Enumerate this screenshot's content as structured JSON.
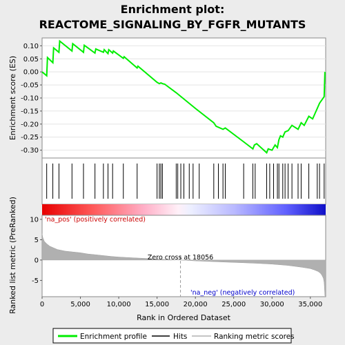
{
  "chart_data": [
    {
      "type": "line",
      "title_line1": "Enrichment plot:",
      "title_line2": "REACTOME_SIGNALING_BY_FGFR_MUTANTS",
      "ylabel": "Enrichment score (ES)",
      "xlim": [
        0,
        37000
      ],
      "ylim": [
        -0.33,
        0.13
      ],
      "yticks": [
        0.1,
        0.05,
        0.0,
        -0.05,
        -0.1,
        -0.15,
        -0.2,
        -0.25,
        -0.3
      ],
      "ytick_labels": [
        "0.10",
        "0.05",
        "0.00",
        "-0.05",
        "-0.10",
        "-0.15",
        "-0.20",
        "-0.25",
        "-0.30"
      ],
      "grid": true,
      "series": [
        {
          "color": "#00ee00",
          "x": [
            0,
            600,
            700,
            1400,
            1500,
            2200,
            2300,
            3900,
            4000,
            5400,
            5500,
            6900,
            7000,
            8000,
            8100,
            8600,
            8700,
            9200,
            9300,
            10600,
            10700,
            12400,
            12500,
            15000,
            15300,
            15500,
            15700,
            16000,
            17500,
            20000,
            22400,
            22700,
            23600,
            23900,
            26300,
            27500,
            27700,
            28000,
            29300,
            29500,
            30000,
            30400,
            30700,
            30900,
            31100,
            31400,
            31700,
            32100,
            32600,
            33400,
            33800,
            34200,
            34800,
            35300,
            35900,
            36200,
            36800,
            36900
          ],
          "y": [
            0.0,
            -0.015,
            0.055,
            0.035,
            0.092,
            0.075,
            0.118,
            0.08,
            0.108,
            0.075,
            0.102,
            0.072,
            0.088,
            0.075,
            0.085,
            0.07,
            0.085,
            0.072,
            0.08,
            0.052,
            0.058,
            0.015,
            0.022,
            -0.04,
            -0.045,
            -0.042,
            -0.045,
            -0.047,
            -0.08,
            -0.14,
            -0.195,
            -0.208,
            -0.22,
            -0.215,
            -0.268,
            -0.295,
            -0.28,
            -0.275,
            -0.31,
            -0.295,
            -0.3,
            -0.28,
            -0.29,
            -0.26,
            -0.245,
            -0.25,
            -0.23,
            -0.225,
            -0.205,
            -0.22,
            -0.195,
            -0.205,
            -0.17,
            -0.18,
            -0.14,
            -0.12,
            -0.095,
            0.0
          ]
        }
      ]
    },
    {
      "type": "hits",
      "legend_label": "Hits",
      "hit_positions": [
        600,
        1400,
        2200,
        3900,
        5400,
        6900,
        8000,
        8600,
        9200,
        10600,
        12400,
        15000,
        15300,
        15500,
        15700,
        17500,
        17700,
        18100,
        18500,
        19200,
        19700,
        20500,
        22400,
        23000,
        23600,
        23900,
        26300,
        27500,
        27800,
        29300,
        29700,
        30200,
        30700,
        30900,
        31400,
        31700,
        32100,
        32600,
        33400,
        33800,
        34800,
        35900,
        36200,
        36800
      ]
    },
    {
      "type": "area",
      "xlabel": "Rank in Ordered Dataset",
      "ylabel": "Ranked list metric (PreRanked)",
      "xlim": [
        0,
        37000
      ],
      "ylim": [
        -9,
        11
      ],
      "yticks": [
        10,
        5,
        0,
        -5
      ],
      "ytick_labels": [
        "10",
        "5",
        "0",
        "-5"
      ],
      "xticks": [
        0,
        5000,
        10000,
        15000,
        20000,
        25000,
        30000,
        35000
      ],
      "xtick_labels": [
        "0",
        "5,000",
        "10,000",
        "15,000",
        "20,000",
        "25,000",
        "30,000",
        "35,000"
      ],
      "zero_cross": 18056,
      "zero_cross_label": "Zero cross at 18056",
      "pos_label": "'na_pos' (positively correlated)",
      "neg_label": "'na_neg' (negatively correlated)",
      "color": "#b0b0b0",
      "x": [
        0,
        100,
        300,
        600,
        1000,
        1500,
        2000,
        3000,
        4000,
        5000,
        6000,
        7000,
        8000,
        9000,
        10000,
        12000,
        14000,
        16000,
        18056,
        20000,
        22000,
        24000,
        26000,
        28000,
        30000,
        32000,
        33000,
        34000,
        35000,
        35500,
        36000,
        36300,
        36500,
        36700,
        36800,
        36900,
        37000
      ],
      "y": [
        6.5,
        5.5,
        4.6,
        4.0,
        3.4,
        3.0,
        2.6,
        2.2,
        2.0,
        1.8,
        1.5,
        1.3,
        1.1,
        0.9,
        0.75,
        0.55,
        0.35,
        0.15,
        0.0,
        -0.2,
        -0.35,
        -0.5,
        -0.65,
        -0.8,
        -1.0,
        -1.3,
        -1.55,
        -1.8,
        -2.1,
        -2.4,
        -2.8,
        -3.2,
        -3.7,
        -4.5,
        -5.5,
        -8.8,
        -8.8
      ]
    }
  ],
  "legend": {
    "entries": [
      {
        "label": "Enrichment profile",
        "color": "#00ee00"
      },
      {
        "label": "Hits",
        "color": "#000000"
      },
      {
        "label": "Ranking metric scores",
        "color": "#b0b0b0"
      }
    ]
  }
}
